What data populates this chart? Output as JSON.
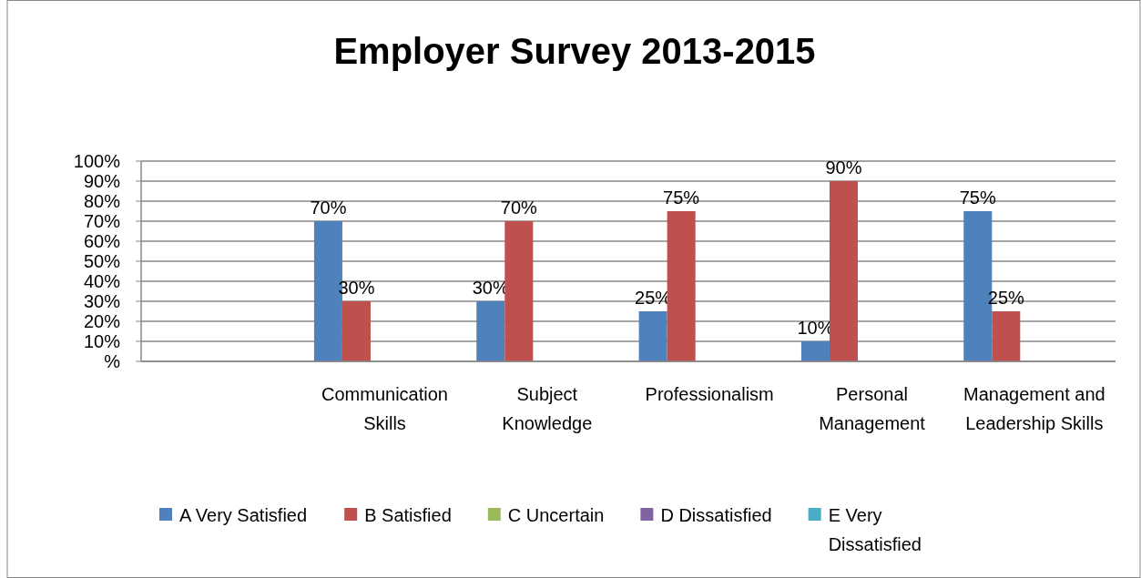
{
  "chart_data": {
    "type": "bar",
    "title": "Employer Survey 2013-2015",
    "categories": [
      null,
      "Communication Skills",
      "Subject Knowledge",
      "Professionalism",
      "Personal Management",
      "Management and Leadership Skills"
    ],
    "series": [
      {
        "name": "A Very Satisfied",
        "color": "#4f81bd",
        "values": [
          null,
          70,
          30,
          25,
          10,
          75
        ],
        "value_labels": [
          null,
          "70%",
          "30%",
          "25%",
          "10%",
          "75%"
        ]
      },
      {
        "name": "B Satisfied",
        "color": "#c0504d",
        "values": [
          null,
          30,
          70,
          75,
          90,
          25
        ],
        "value_labels": [
          null,
          "30%",
          "70%",
          "75%",
          "90%",
          "25%"
        ]
      },
      {
        "name": "C Uncertain",
        "color": "#9bbb59",
        "values": [
          null,
          null,
          null,
          null,
          null,
          null
        ]
      },
      {
        "name": "D Dissatisfied",
        "color": "#8064a2",
        "values": [
          null,
          null,
          null,
          null,
          null,
          null
        ]
      },
      {
        "name": "E Very Dissatisfied",
        "color": "#4bacc6",
        "values": [
          null,
          null,
          null,
          null,
          null,
          null
        ]
      }
    ],
    "ylim": [
      0,
      100
    ],
    "yticks": [
      {
        "value": 0,
        "label": "%"
      },
      {
        "value": 10,
        "label": "10%"
      },
      {
        "value": 20,
        "label": "20%"
      },
      {
        "value": 30,
        "label": "30%"
      },
      {
        "value": 40,
        "label": "40%"
      },
      {
        "value": 50,
        "label": "50%"
      },
      {
        "value": 60,
        "label": "60%"
      },
      {
        "value": 70,
        "label": "70%"
      },
      {
        "value": 80,
        "label": "80%"
      },
      {
        "value": 90,
        "label": "90%"
      },
      {
        "value": 100,
        "label": "100%"
      }
    ],
    "grid": "y",
    "legend": "bottom"
  }
}
